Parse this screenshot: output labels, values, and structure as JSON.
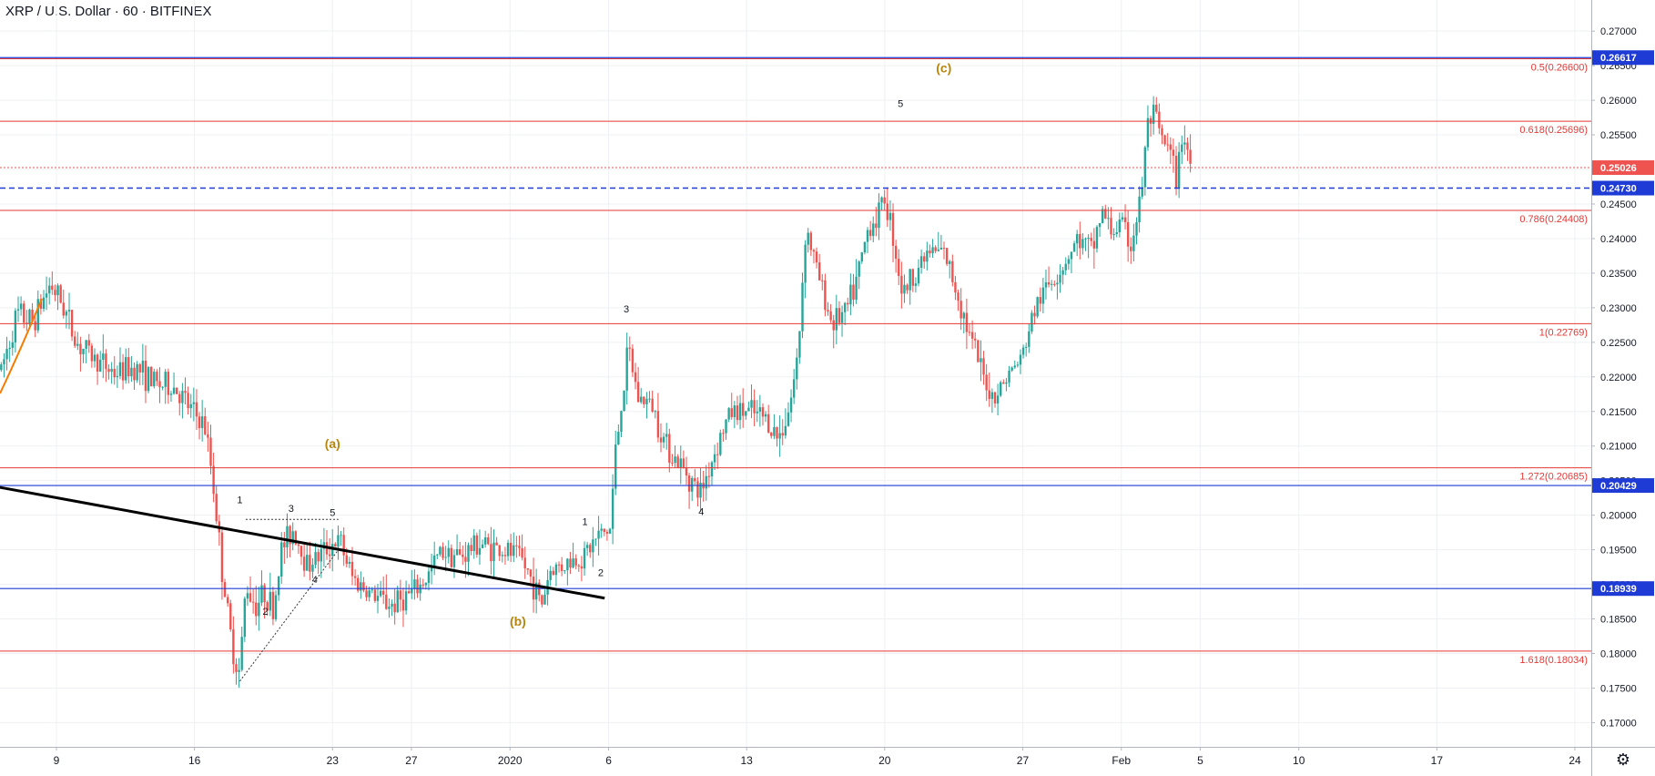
{
  "header": {
    "title": "XRP / U.S. Dollar · 60 · BITFINEX"
  },
  "settings": {
    "icon": "gear-icon"
  },
  "colors": {
    "up": "#26a69a",
    "down": "#ef5350",
    "fib": "#e53935",
    "blue": "#1e3bd6",
    "grid": "#eef0f3",
    "wave": "#b8860b",
    "trendline": "#000000",
    "arc": "#f57c00"
  },
  "chart_data": {
    "type": "candlestick",
    "symbol": "XRP / U.S. Dollar",
    "interval": "60",
    "exchange": "BITFINEX",
    "ylim": [
      0.1665,
      0.2745
    ],
    "y_ticks": [
      "0.17000",
      "0.17500",
      "0.18000",
      "0.18500",
      "0.19000",
      "0.19500",
      "0.20000",
      "0.20500",
      "0.21000",
      "0.21500",
      "0.22000",
      "0.22500",
      "0.23000",
      "0.23500",
      "0.24000",
      "0.24500",
      "0.25000",
      "0.25500",
      "0.26000",
      "0.26500",
      "0.27000"
    ],
    "x_ticks": [
      {
        "label": "9",
        "day": 9
      },
      {
        "label": "16",
        "day": 16
      },
      {
        "label": "23",
        "day": 23
      },
      {
        "label": "27",
        "day": 27
      },
      {
        "label": "2020",
        "day": 32
      },
      {
        "label": "6",
        "day": 37
      },
      {
        "label": "13",
        "day": 44
      },
      {
        "label": "20",
        "day": 51
      },
      {
        "label": "27",
        "day": 58
      },
      {
        "label": "Feb",
        "day": 63
      },
      {
        "label": "5",
        "day": 67
      },
      {
        "label": "10",
        "day": 72
      },
      {
        "label": "17",
        "day": 79
      },
      {
        "label": "24",
        "day": 86
      }
    ],
    "price_path": [
      [
        6.2,
        0.221
      ],
      [
        7.0,
        0.229
      ],
      [
        7.8,
        0.228
      ],
      [
        8.7,
        0.2335
      ],
      [
        9.4,
        0.23
      ],
      [
        10.0,
        0.225
      ],
      [
        11.0,
        0.2225
      ],
      [
        12.0,
        0.2205
      ],
      [
        13.0,
        0.2215
      ],
      [
        14.0,
        0.219
      ],
      [
        15.0,
        0.2185
      ],
      [
        15.6,
        0.216
      ],
      [
        16.5,
        0.213
      ],
      [
        16.9,
        0.206
      ],
      [
        17.4,
        0.192
      ],
      [
        17.9,
        0.181
      ],
      [
        18.3,
        0.177
      ],
      [
        18.6,
        0.19
      ],
      [
        19.1,
        0.187
      ],
      [
        19.6,
        0.189
      ],
      [
        20.0,
        0.186
      ],
      [
        20.4,
        0.195
      ],
      [
        21.0,
        0.198
      ],
      [
        21.7,
        0.193
      ],
      [
        22.3,
        0.194
      ],
      [
        23.0,
        0.196
      ],
      [
        23.4,
        0.196
      ],
      [
        24.0,
        0.191
      ],
      [
        25.0,
        0.1885
      ],
      [
        26.0,
        0.187
      ],
      [
        26.6,
        0.188
      ],
      [
        27.2,
        0.189
      ],
      [
        27.8,
        0.191
      ],
      [
        28.5,
        0.195
      ],
      [
        29.5,
        0.194
      ],
      [
        30.4,
        0.196
      ],
      [
        31.5,
        0.195
      ],
      [
        32.5,
        0.194
      ],
      [
        33.2,
        0.19
      ],
      [
        33.6,
        0.187
      ],
      [
        34.0,
        0.192
      ],
      [
        34.8,
        0.193
      ],
      [
        35.7,
        0.194
      ],
      [
        36.5,
        0.197
      ],
      [
        37.1,
        0.198
      ],
      [
        37.3,
        0.208
      ],
      [
        37.6,
        0.215
      ],
      [
        38.0,
        0.224
      ],
      [
        38.5,
        0.217
      ],
      [
        39.2,
        0.216
      ],
      [
        39.8,
        0.211
      ],
      [
        40.4,
        0.208
      ],
      [
        41.0,
        0.206
      ],
      [
        41.6,
        0.203
      ],
      [
        42.0,
        0.206
      ],
      [
        42.6,
        0.211
      ],
      [
        43.2,
        0.215
      ],
      [
        44.0,
        0.215
      ],
      [
        45.0,
        0.214
      ],
      [
        45.6,
        0.211
      ],
      [
        46.2,
        0.216
      ],
      [
        46.6,
        0.223
      ],
      [
        47.0,
        0.242
      ],
      [
        47.6,
        0.235
      ],
      [
        48.3,
        0.228
      ],
      [
        49.0,
        0.229
      ],
      [
        49.6,
        0.234
      ],
      [
        50.2,
        0.242
      ],
      [
        50.6,
        0.243
      ],
      [
        51.0,
        0.246
      ],
      [
        51.4,
        0.241
      ],
      [
        51.9,
        0.232
      ],
      [
        52.5,
        0.235
      ],
      [
        53.2,
        0.238
      ],
      [
        54.0,
        0.238
      ],
      [
        54.6,
        0.233
      ],
      [
        55.3,
        0.226
      ],
      [
        56.0,
        0.22
      ],
      [
        56.5,
        0.217
      ],
      [
        57.2,
        0.22
      ],
      [
        58.0,
        0.223
      ],
      [
        58.5,
        0.229
      ],
      [
        59.2,
        0.233
      ],
      [
        60.0,
        0.236
      ],
      [
        60.8,
        0.24
      ],
      [
        61.5,
        0.238
      ],
      [
        62.0,
        0.244
      ],
      [
        62.5,
        0.241
      ],
      [
        63.0,
        0.242
      ],
      [
        63.5,
        0.239
      ],
      [
        64.0,
        0.246
      ],
      [
        64.3,
        0.256
      ],
      [
        64.6,
        0.258
      ],
      [
        65.0,
        0.2545
      ],
      [
        65.5,
        0.252
      ],
      [
        65.8,
        0.248
      ],
      [
        66.1,
        0.256
      ],
      [
        66.5,
        0.251
      ]
    ],
    "fib_levels": [
      {
        "label": "0.5(0.26600)",
        "price": 0.266
      },
      {
        "label": "0.618(0.25696)",
        "price": 0.25696
      },
      {
        "label": "0.786(0.24408)",
        "price": 0.24408
      },
      {
        "label": "1(0.22769)",
        "price": 0.22769
      },
      {
        "label": "1.272(0.20685)",
        "price": 0.20685
      },
      {
        "label": "1.618(0.18034)",
        "price": 0.18034
      }
    ],
    "horizontal_levels": [
      {
        "label": "0.26617",
        "price": 0.26617,
        "style": "solid",
        "color": "#1e3bd6",
        "text_color": "#ffffff"
      },
      {
        "label": "0.24730",
        "price": 0.2473,
        "style": "dashed",
        "color": "#1e3bd6",
        "text_color": "#ffffff"
      },
      {
        "label": "0.20429",
        "price": 0.20429,
        "style": "solid",
        "color": "#1e3bd6",
        "text_color": "#ffffff"
      },
      {
        "label": "0.18939",
        "price": 0.18939,
        "style": "solid",
        "color": "#1e3bd6",
        "text_color": "#ffffff"
      }
    ],
    "last_price": {
      "label": "0.25026",
      "price": 0.25026,
      "color": "#ef5350"
    },
    "trendline": {
      "from": [
        5.8,
        0.2042
      ],
      "to": [
        36.8,
        0.188
      ]
    },
    "dotted_lines": [
      {
        "from": [
          18.3,
          0.176
        ],
        "to": [
          23.3,
          0.195
        ]
      },
      {
        "from": [
          18.6,
          0.1994
        ],
        "to": [
          23.3,
          0.1994
        ]
      }
    ],
    "wave_labels": [
      {
        "text": "(a)",
        "day": 23.0,
        "price": 0.2097,
        "major": true
      },
      {
        "text": "(b)",
        "day": 32.4,
        "price": 0.184,
        "major": true
      },
      {
        "text": "(c)",
        "day": 54.0,
        "price": 0.264,
        "major": true
      },
      {
        "text": "1",
        "day": 18.3,
        "price": 0.2017,
        "major": false
      },
      {
        "text": "2",
        "day": 19.6,
        "price": 0.1856,
        "major": false
      },
      {
        "text": "3",
        "day": 20.9,
        "price": 0.2005,
        "major": false
      },
      {
        "text": "4",
        "day": 22.1,
        "price": 0.1902,
        "major": false
      },
      {
        "text": "5",
        "day": 23.0,
        "price": 0.1999,
        "major": false
      },
      {
        "text": "1",
        "day": 35.8,
        "price": 0.1986,
        "major": false
      },
      {
        "text": "2",
        "day": 36.6,
        "price": 0.1912,
        "major": false
      },
      {
        "text": "3",
        "day": 37.9,
        "price": 0.2293,
        "major": false
      },
      {
        "text": "4",
        "day": 41.7,
        "price": 0.2,
        "major": false
      },
      {
        "text": "5",
        "day": 51.8,
        "price": 0.259,
        "major": false
      }
    ]
  }
}
